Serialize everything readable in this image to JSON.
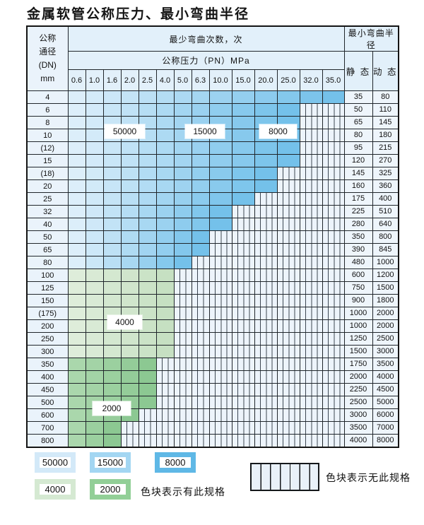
{
  "title": "金属软管公称压力、最小弯曲半径",
  "chart_data": {
    "type": "table",
    "title": "金属软管公称压力、最小弯曲半径",
    "header": {
      "dn_lines": [
        "公称",
        "通径",
        "(DN)",
        "mm"
      ],
      "cycles": "最少弯曲次数，次",
      "pressure": "公称压力（PN）MPa",
      "radius": "最小弯曲半径",
      "static": "静 态",
      "dynamic": "动 态"
    },
    "pn_columns": [
      "0.6",
      "1.0",
      "1.6",
      "2.0",
      "2.5",
      "4.0",
      "5.0",
      "6.3",
      "10.0",
      "15.0",
      "20.0",
      "25.0",
      "32.0",
      "35.0"
    ],
    "rows": [
      {
        "dn": "4",
        "available_pn_count": 14,
        "max_pn": "35.0",
        "zone": "blue",
        "static_radius": "35",
        "dynamic_radius": "80"
      },
      {
        "dn": "6",
        "available_pn_count": 12,
        "max_pn": "25.0",
        "zone": "blue",
        "static_radius": "50",
        "dynamic_radius": "110"
      },
      {
        "dn": "8",
        "available_pn_count": 12,
        "max_pn": "25.0",
        "zone": "blue",
        "static_radius": "65",
        "dynamic_radius": "145"
      },
      {
        "dn": "10",
        "available_pn_count": 12,
        "max_pn": "25.0",
        "zone": "blue",
        "static_radius": "80",
        "dynamic_radius": "180"
      },
      {
        "dn": "(12)",
        "available_pn_count": 12,
        "max_pn": "25.0",
        "zone": "blue",
        "static_radius": "95",
        "dynamic_radius": "215"
      },
      {
        "dn": "15",
        "available_pn_count": 12,
        "max_pn": "25.0",
        "zone": "blue",
        "static_radius": "120",
        "dynamic_radius": "270"
      },
      {
        "dn": "(18)",
        "available_pn_count": 11,
        "max_pn": "20.0",
        "zone": "blue",
        "static_radius": "145",
        "dynamic_radius": "325"
      },
      {
        "dn": "20",
        "available_pn_count": 11,
        "max_pn": "20.0",
        "zone": "blue",
        "static_radius": "160",
        "dynamic_radius": "360"
      },
      {
        "dn": "25",
        "available_pn_count": 10,
        "max_pn": "15.0",
        "zone": "blue",
        "static_radius": "175",
        "dynamic_radius": "400"
      },
      {
        "dn": "32",
        "available_pn_count": 9,
        "max_pn": "10.0",
        "zone": "blue",
        "static_radius": "225",
        "dynamic_radius": "510"
      },
      {
        "dn": "40",
        "available_pn_count": 9,
        "max_pn": "10.0",
        "zone": "blue",
        "static_radius": "280",
        "dynamic_radius": "640"
      },
      {
        "dn": "50",
        "available_pn_count": 8,
        "max_pn": "6.3",
        "zone": "blue",
        "static_radius": "350",
        "dynamic_radius": "800"
      },
      {
        "dn": "65",
        "available_pn_count": 8,
        "max_pn": "6.3",
        "zone": "blue",
        "static_radius": "390",
        "dynamic_radius": "845"
      },
      {
        "dn": "80",
        "available_pn_count": 7,
        "max_pn": "5.0",
        "zone": "blue",
        "static_radius": "480",
        "dynamic_radius": "1000"
      },
      {
        "dn": "100",
        "available_pn_count": 6,
        "max_pn": "4.0",
        "zone": "green_light",
        "static_radius": "600",
        "dynamic_radius": "1200"
      },
      {
        "dn": "125",
        "available_pn_count": 6,
        "max_pn": "4.0",
        "zone": "green_light",
        "static_radius": "750",
        "dynamic_radius": "1500"
      },
      {
        "dn": "150",
        "available_pn_count": 6,
        "max_pn": "4.0",
        "zone": "green_light",
        "static_radius": "900",
        "dynamic_radius": "1800"
      },
      {
        "dn": "(175)",
        "available_pn_count": 6,
        "max_pn": "4.0",
        "zone": "green_light",
        "static_radius": "1000",
        "dynamic_radius": "2000"
      },
      {
        "dn": "200",
        "available_pn_count": 6,
        "max_pn": "4.0",
        "zone": "green_light",
        "static_radius": "1000",
        "dynamic_radius": "2000"
      },
      {
        "dn": "250",
        "available_pn_count": 6,
        "max_pn": "4.0",
        "zone": "green_light",
        "static_radius": "1250",
        "dynamic_radius": "2500"
      },
      {
        "dn": "300",
        "available_pn_count": 6,
        "max_pn": "4.0",
        "zone": "green_light",
        "static_radius": "1500",
        "dynamic_radius": "3000"
      },
      {
        "dn": "350",
        "available_pn_count": 5,
        "max_pn": "2.5",
        "zone": "green_dark",
        "static_radius": "1750",
        "dynamic_radius": "3500"
      },
      {
        "dn": "400",
        "available_pn_count": 5,
        "max_pn": "2.5",
        "zone": "green_dark",
        "static_radius": "2000",
        "dynamic_radius": "4000"
      },
      {
        "dn": "450",
        "available_pn_count": 5,
        "max_pn": "2.5",
        "zone": "green_dark",
        "static_radius": "2250",
        "dynamic_radius": "4500"
      },
      {
        "dn": "500",
        "available_pn_count": 5,
        "max_pn": "2.5",
        "zone": "green_dark",
        "static_radius": "2500",
        "dynamic_radius": "5000"
      },
      {
        "dn": "600",
        "available_pn_count": 4,
        "max_pn": "2.0",
        "zone": "green_dark",
        "static_radius": "3000",
        "dynamic_radius": "6000"
      },
      {
        "dn": "700",
        "available_pn_count": 3,
        "max_pn": "1.6",
        "zone": "green_dark",
        "static_radius": "3500",
        "dynamic_radius": "7000"
      },
      {
        "dn": "800",
        "available_pn_count": 3,
        "max_pn": "1.6",
        "zone": "green_dark",
        "static_radius": "4000",
        "dynamic_radius": "8000"
      }
    ],
    "cycle_zones": {
      "blue_row_cycles_left_to_right": [
        "50000",
        "15000",
        "8000"
      ],
      "green_light_cycles": "4000",
      "green_dark_cycles": "2000"
    }
  },
  "overlay_labels": [
    {
      "text": "50000"
    },
    {
      "text": "15000"
    },
    {
      "text": "8000"
    },
    {
      "text": "4000"
    },
    {
      "text": "2000"
    }
  ],
  "legend": {
    "boxes": [
      {
        "label": "50000",
        "color": "#d3e9f8"
      },
      {
        "label": "15000",
        "color": "#a3d6f2"
      },
      {
        "label": "8000",
        "color": "#5fb8e6"
      },
      {
        "label": "4000",
        "color": "#d5e9d2"
      },
      {
        "label": "2000",
        "color": "#92cf97"
      }
    ],
    "available_caption": "色块表示有此规格",
    "unavailable_caption": "色块表示无此规格"
  },
  "colors": {
    "blue_start": "#dceefa",
    "blue_end": "#74c1ea",
    "green_light_start": "#deedda",
    "green_light_end": "#c6e0c2",
    "green_dark_start": "#aad7ac",
    "green_dark_end": "#8cc892",
    "hatch_bg": "#edf4fb",
    "header_bg": "#e2f0fa",
    "dn_bg": "#eaf3fb",
    "radius_bg": "#eef5fb"
  }
}
